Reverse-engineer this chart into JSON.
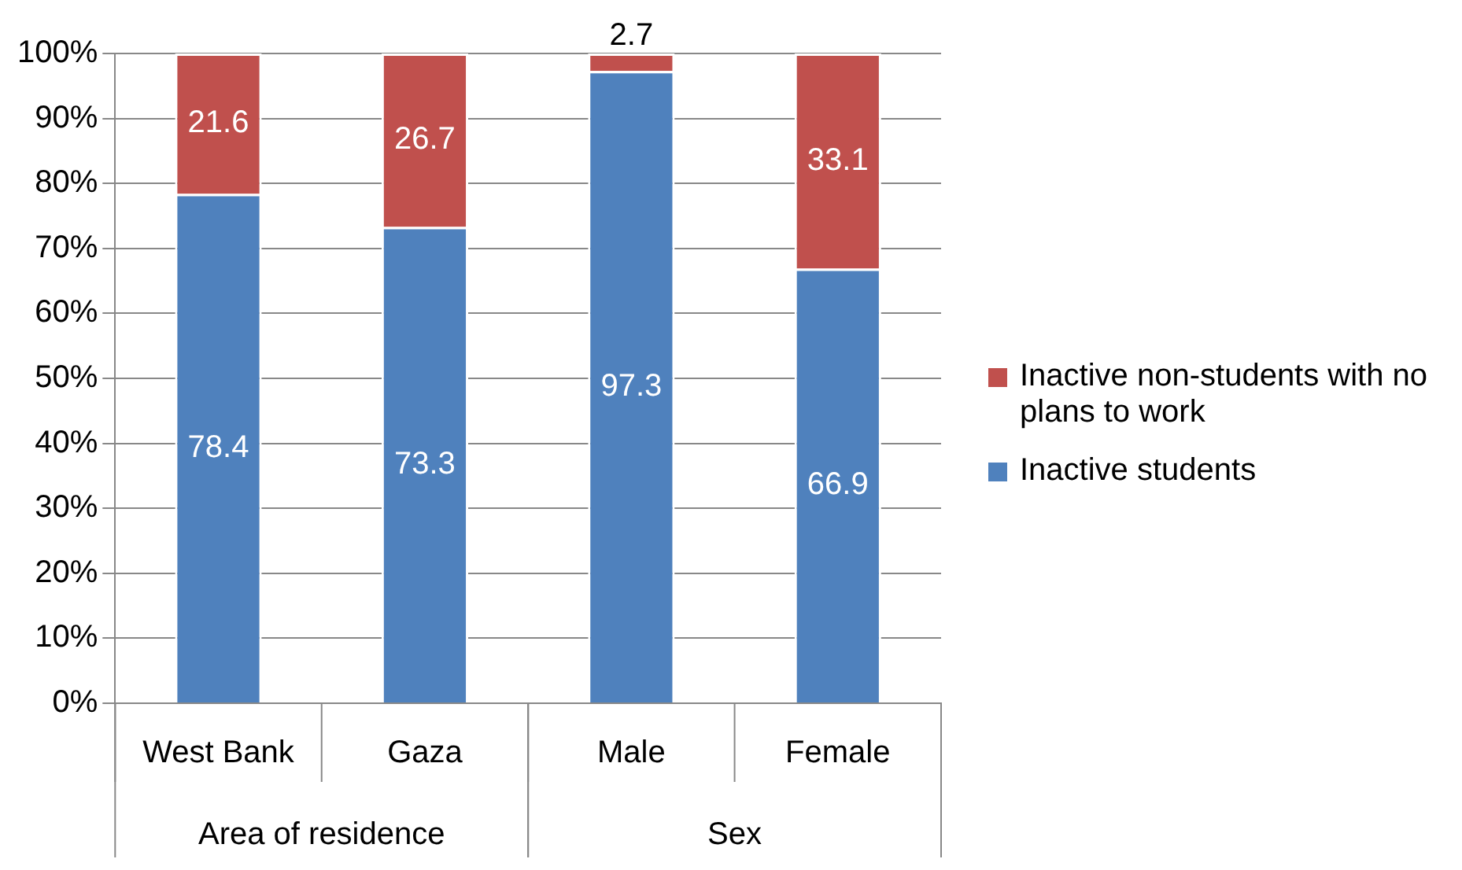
{
  "chart_data": {
    "type": "bar",
    "stacked": true,
    "categories": [
      "West Bank",
      "Gaza",
      "Male",
      "Female"
    ],
    "series": [
      {
        "name": "Inactive students",
        "color": "#4f81bd",
        "values": [
          78.4,
          73.3,
          97.3,
          66.9
        ]
      },
      {
        "name": "Inactive non-students with no plans to work",
        "color": "#c0504d",
        "values": [
          21.6,
          26.7,
          2.7,
          33.1
        ]
      }
    ],
    "ylim": [
      0,
      100
    ],
    "yticks": [
      {
        "value": 0,
        "label": "0%"
      },
      {
        "value": 10,
        "label": "10%"
      },
      {
        "value": 20,
        "label": "20%"
      },
      {
        "value": 30,
        "label": "30%"
      },
      {
        "value": 40,
        "label": "40%"
      },
      {
        "value": 50,
        "label": "50%"
      },
      {
        "value": 60,
        "label": "60%"
      },
      {
        "value": 70,
        "label": "70%"
      },
      {
        "value": 80,
        "label": "80%"
      },
      {
        "value": 90,
        "label": "90%"
      },
      {
        "value": 100,
        "label": "100%"
      }
    ],
    "grid": "y",
    "legend": "right",
    "data_labels": true,
    "annotations": [
      "Area of residence",
      "Sex"
    ]
  }
}
